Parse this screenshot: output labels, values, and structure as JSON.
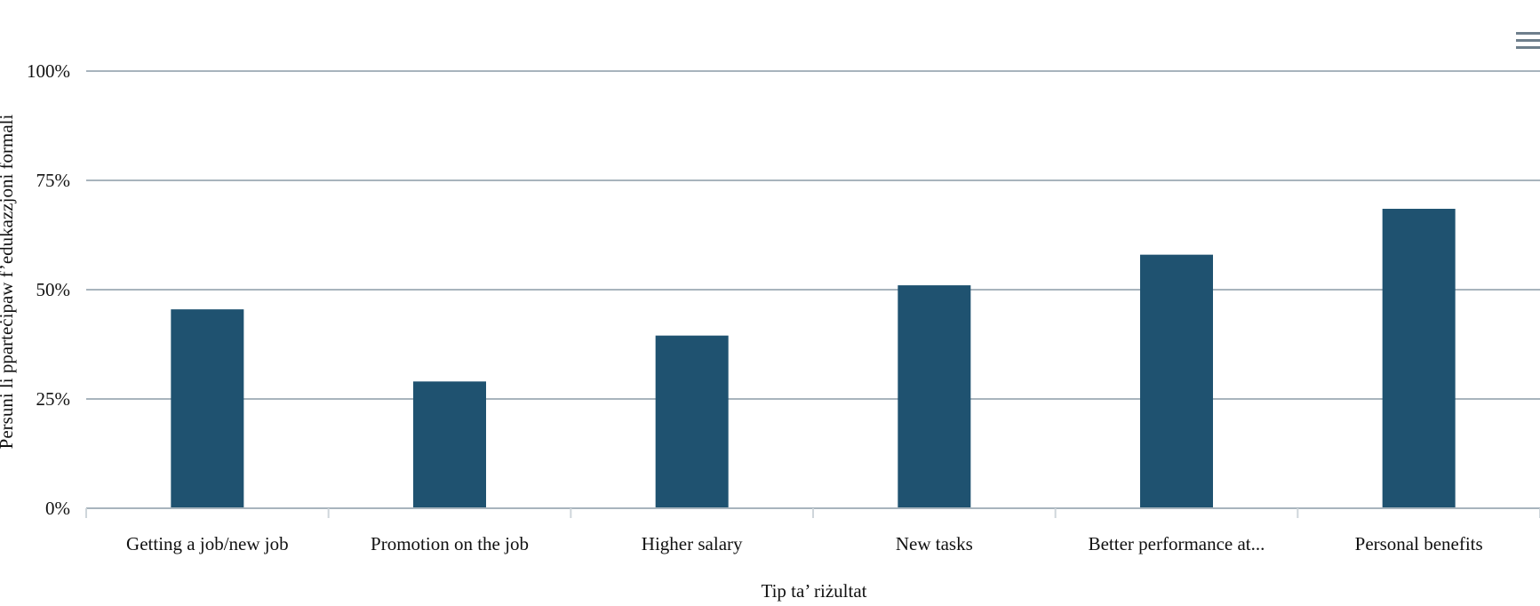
{
  "chart_data": {
    "type": "bar",
    "title": "",
    "xlabel": "Tip ta’ riżultat",
    "ylabel": "Persuni li pparteċipaw f’edukazzjoni formali",
    "categories": [
      "Getting a job/new job",
      "Promotion on the job",
      "Higher salary",
      "New tasks",
      "Better performance at...",
      "Personal benefits"
    ],
    "series": [
      {
        "values": [
          45.5,
          29,
          39.5,
          51,
          58,
          68.5
        ]
      }
    ],
    "ylim": [
      0,
      100
    ],
    "yticks": [
      "0%",
      "25%",
      "50%",
      "75%",
      "100%"
    ],
    "ytick_values": [
      0,
      25,
      50,
      75,
      100
    ],
    "grid": true,
    "legend": "none",
    "colors": {
      "bar": "#1f5270",
      "grid": "#a8b4bd",
      "axis": "#a8b4bd",
      "menu_icon": "#6e7f8c"
    }
  },
  "toolbar": {
    "menu_icon": "hamburger-menu-icon"
  }
}
